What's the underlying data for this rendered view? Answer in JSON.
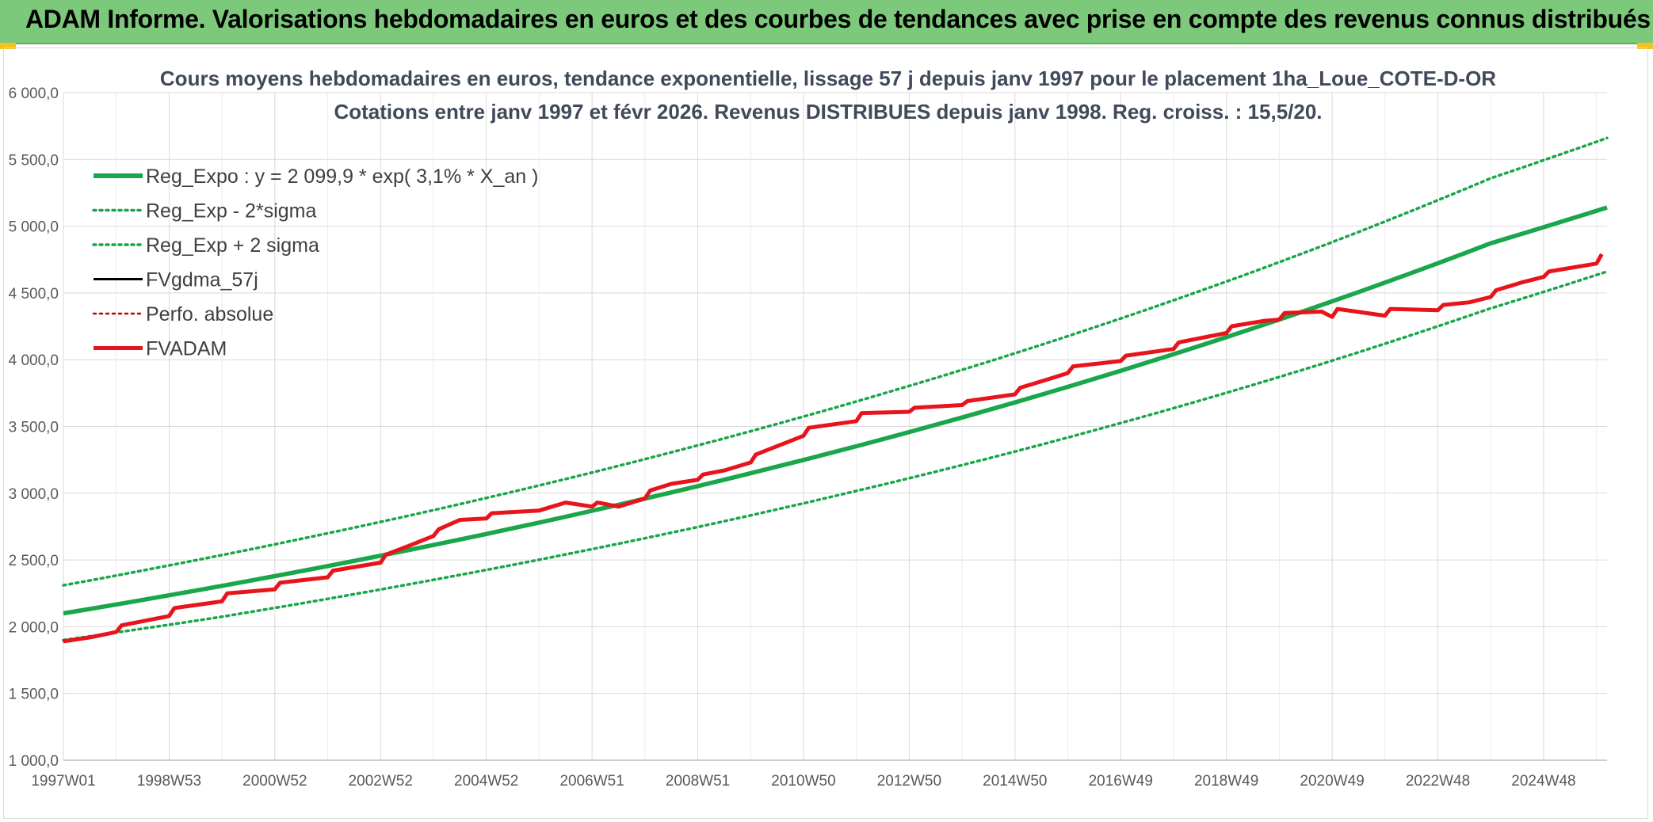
{
  "header": {
    "title": "ADAM Informe. Valorisations hebdomadaires en euros et des courbes de tendances avec prise en compte des revenus connus distribués"
  },
  "chart_data": {
    "type": "line",
    "title": "Cours moyens hebdomadaires en euros, tendance exponentielle, lissage 57 j depuis janv 1997 pour le placement 1ha_Loue_COTE-D-OR",
    "subtitle": "Cotations entre janv 1997 et févr 2026. Revenus DISTRIBUES depuis janv 1998. Reg. croiss. : 15,5/20.",
    "ylim": [
      1000,
      6000
    ],
    "y_ticks": [
      "1 000,0",
      "1 500,0",
      "2 000,0",
      "2 500,0",
      "3 000,0",
      "3 500,0",
      "4 000,0",
      "4 500,0",
      "5 000,0",
      "5 500,0",
      "6 000,0"
    ],
    "x_ticks": [
      "1997W01",
      "1998W53",
      "2000W52",
      "2002W52",
      "2004W52",
      "2006W51",
      "2008W51",
      "2010W50",
      "2012W50",
      "2014W50",
      "2016W49",
      "2018W49",
      "2020W49",
      "2022W48",
      "2024W48"
    ],
    "x_years": [
      1997.0,
      1999.0,
      2001.0,
      2003.0,
      2005.0,
      2007.0,
      2009.0,
      2011.0,
      2013.0,
      2015.0,
      2017.0,
      2019.0,
      2021.0,
      2023.0,
      2025.0
    ],
    "xlim": [
      1997.0,
      2026.2
    ],
    "grid": true,
    "legend_position": "top-left",
    "series": [
      {
        "name": "Reg_Expo : y = 2 099,9 * exp( 3,1% *  X_an )",
        "color": "#1aa64a",
        "style": "solid",
        "x": [
          1997,
          2000,
          2003,
          2006,
          2009,
          2012,
          2015,
          2018,
          2021,
          2024,
          2026.2
        ],
        "values": [
          2100,
          2306,
          2532,
          2780,
          3053,
          3352,
          3680,
          4041,
          4437,
          4872,
          5140
        ]
      },
      {
        "name": "Reg_Exp - 2*sigma",
        "color": "#1aa64a",
        "style": "dotted",
        "x": [
          1997,
          2000,
          2003,
          2006,
          2009,
          2012,
          2015,
          2018,
          2021,
          2024,
          2026.2
        ],
        "values": [
          1900,
          2075,
          2279,
          2502,
          2747,
          3017,
          3312,
          3637,
          3993,
          4385,
          4660
        ]
      },
      {
        "name": "Reg_Exp + 2 sigma",
        "color": "#1aa64a",
        "style": "dotted",
        "x": [
          1997,
          2000,
          2003,
          2006,
          2009,
          2012,
          2015,
          2018,
          2021,
          2024,
          2026.2
        ],
        "values": [
          2310,
          2537,
          2785,
          3058,
          3358,
          3687,
          4048,
          4445,
          4880,
          5359,
          5660
        ]
      },
      {
        "name": "FVgdma_57j",
        "color": "#000000",
        "style": "solid",
        "x": [
          1997,
          1997.5,
          1998,
          1998.1,
          1999,
          1999.1,
          2000,
          2000.1,
          2001,
          2001.1,
          2002,
          2002.1,
          2003,
          2003.1,
          2003.5,
          2004,
          2004.1,
          2004.5,
          2005,
          2005.1,
          2006,
          2006.5,
          2007,
          2007.1,
          2007.5,
          2008,
          2008.1,
          2008.5,
          2009,
          2009.1,
          2009.5,
          2010,
          2010.1,
          2011,
          2011.1,
          2012,
          2012.1,
          2013,
          2013.1,
          2014,
          2014.1,
          2015,
          2015.1,
          2015.6,
          2016,
          2016.1,
          2017,
          2017.1,
          2018,
          2018.1,
          2019,
          2019.1,
          2019.7,
          2020,
          2020.1,
          2020.8,
          2021,
          2021.1,
          2022,
          2022.1,
          2023,
          2023.1,
          2023.6,
          2024,
          2024.1,
          2024.6,
          2025,
          2025.1,
          2026,
          2026.1
        ],
        "values": [
          1890,
          1920,
          1960,
          2010,
          2080,
          2140,
          2190,
          2250,
          2280,
          2330,
          2370,
          2420,
          2480,
          2540,
          2600,
          2680,
          2730,
          2800,
          2810,
          2850,
          2870,
          2930,
          2900,
          2930,
          2900,
          2960,
          3020,
          3070,
          3100,
          3140,
          3170,
          3230,
          3290,
          3430,
          3490,
          3540,
          3600,
          3610,
          3640,
          3660,
          3690,
          3740,
          3790,
          3850,
          3900,
          3950,
          3990,
          4030,
          4080,
          4130,
          4200,
          4250,
          4290,
          4300,
          4350,
          4360,
          4320,
          4380,
          4330,
          4380,
          4370,
          4410,
          4430,
          4470,
          4520,
          4580,
          4620,
          4660,
          4720,
          4790
        ]
      },
      {
        "name": "Perfo. absolue",
        "color": "#c00000",
        "style": "dotted",
        "x": [
          1997,
          1997.5,
          1998,
          1998.1,
          1999,
          1999.1,
          2000,
          2000.1,
          2001,
          2001.1,
          2002,
          2002.1,
          2003,
          2003.1,
          2003.5,
          2004,
          2004.1,
          2004.5,
          2005,
          2005.1,
          2006,
          2006.5,
          2007,
          2007.1,
          2007.5,
          2008,
          2008.1,
          2008.5,
          2009,
          2009.1,
          2009.5,
          2010,
          2010.1,
          2011,
          2011.1,
          2012,
          2012.1,
          2013,
          2013.1,
          2014,
          2014.1,
          2015,
          2015.1,
          2015.6,
          2016,
          2016.1,
          2017,
          2017.1,
          2018,
          2018.1,
          2019,
          2019.1,
          2019.7,
          2020,
          2020.1,
          2020.8,
          2021,
          2021.1,
          2022,
          2022.1,
          2023,
          2023.1,
          2023.6,
          2024,
          2024.1,
          2024.6,
          2025,
          2025.1,
          2026,
          2026.1
        ],
        "values": [
          1890,
          1920,
          1960,
          2010,
          2080,
          2140,
          2190,
          2250,
          2280,
          2330,
          2370,
          2420,
          2480,
          2540,
          2600,
          2680,
          2730,
          2800,
          2810,
          2850,
          2870,
          2930,
          2900,
          2930,
          2900,
          2960,
          3020,
          3070,
          3100,
          3140,
          3170,
          3230,
          3290,
          3430,
          3490,
          3540,
          3600,
          3610,
          3640,
          3660,
          3690,
          3740,
          3790,
          3850,
          3900,
          3950,
          3990,
          4030,
          4080,
          4130,
          4200,
          4250,
          4290,
          4300,
          4350,
          4360,
          4320,
          4380,
          4330,
          4380,
          4370,
          4410,
          4430,
          4470,
          4520,
          4580,
          4620,
          4660,
          4720,
          4790
        ]
      },
      {
        "name": "FVADAM",
        "color": "#e8141b",
        "style": "solid",
        "x": [
          1997,
          1997.5,
          1998,
          1998.1,
          1999,
          1999.1,
          2000,
          2000.1,
          2001,
          2001.1,
          2002,
          2002.1,
          2003,
          2003.1,
          2003.5,
          2004,
          2004.1,
          2004.5,
          2005,
          2005.1,
          2006,
          2006.5,
          2007,
          2007.1,
          2007.5,
          2008,
          2008.1,
          2008.5,
          2009,
          2009.1,
          2009.5,
          2010,
          2010.1,
          2011,
          2011.1,
          2012,
          2012.1,
          2013,
          2013.1,
          2014,
          2014.1,
          2015,
          2015.1,
          2015.6,
          2016,
          2016.1,
          2017,
          2017.1,
          2018,
          2018.1,
          2019,
          2019.1,
          2019.7,
          2020,
          2020.1,
          2020.8,
          2021,
          2021.1,
          2022,
          2022.1,
          2023,
          2023.1,
          2023.6,
          2024,
          2024.1,
          2024.6,
          2025,
          2025.1,
          2026,
          2026.1
        ],
        "values": [
          1890,
          1920,
          1960,
          2010,
          2080,
          2140,
          2190,
          2250,
          2280,
          2330,
          2370,
          2420,
          2480,
          2540,
          2600,
          2680,
          2730,
          2800,
          2810,
          2850,
          2870,
          2930,
          2900,
          2930,
          2900,
          2960,
          3020,
          3070,
          3100,
          3140,
          3170,
          3230,
          3290,
          3430,
          3490,
          3540,
          3600,
          3610,
          3640,
          3660,
          3690,
          3740,
          3790,
          3850,
          3900,
          3950,
          3990,
          4030,
          4080,
          4130,
          4200,
          4250,
          4290,
          4300,
          4350,
          4360,
          4320,
          4380,
          4330,
          4380,
          4370,
          4410,
          4430,
          4470,
          4520,
          4580,
          4620,
          4660,
          4720,
          4790
        ]
      }
    ]
  }
}
